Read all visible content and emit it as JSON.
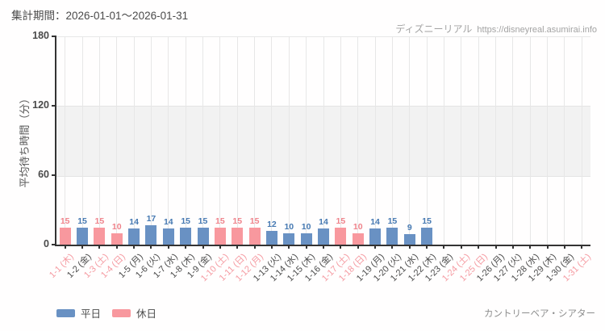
{
  "header": {
    "title": "集計期間：2026-01-01～2026-01-31",
    "watermark_brand": "ディズニーリアル",
    "watermark_url": "https://disneyreal.asumirai.info"
  },
  "chart_data": {
    "type": "bar",
    "title": "集計期間：2026-01-01～2026-01-31",
    "xlabel": "",
    "ylabel": "平均待ち時間（分）",
    "ylim": [
      0,
      180
    ],
    "yticks": [
      0,
      60,
      120,
      180
    ],
    "band": {
      "from": 60,
      "to": 120,
      "color": "#f2f2f2"
    },
    "grid": "vertical-per-category",
    "legend_position": "bottom-left",
    "categories": [
      "1-1 (木)",
      "1-2 (金)",
      "1-3 (土)",
      "1-4 (日)",
      "1-5 (月)",
      "1-6 (火)",
      "1-7 (水)",
      "1-8 (木)",
      "1-9 (金)",
      "1-10 (土)",
      "1-11 (日)",
      "1-12 (月)",
      "1-13 (火)",
      "1-14 (水)",
      "1-15 (木)",
      "1-16 (金)",
      "1-17 (土)",
      "1-18 (日)",
      "1-19 (月)",
      "1-20 (火)",
      "1-21 (水)",
      "1-22 (木)",
      "1-23 (金)",
      "1-24 (土)",
      "1-25 (日)",
      "1-26 (月)",
      "1-27 (火)",
      "1-28 (水)",
      "1-29 (木)",
      "1-30 (金)",
      "1-31 (土)"
    ],
    "values": [
      15,
      15,
      15,
      10,
      14,
      17,
      14,
      15,
      15,
      15,
      15,
      15,
      12,
      10,
      10,
      14,
      15,
      10,
      14,
      15,
      9,
      15,
      null,
      null,
      null,
      null,
      null,
      null,
      null,
      null,
      null
    ],
    "day_types": [
      "holiday",
      "weekday",
      "holiday",
      "holiday",
      "weekday",
      "weekday",
      "weekday",
      "weekday",
      "weekday",
      "holiday",
      "holiday",
      "holiday",
      "weekday",
      "weekday",
      "weekday",
      "weekday",
      "holiday",
      "holiday",
      "weekday",
      "weekday",
      "weekday",
      "weekday",
      "weekday",
      "holiday",
      "holiday",
      "weekday",
      "weekday",
      "weekday",
      "weekday",
      "weekday",
      "holiday"
    ],
    "series_colors": {
      "weekday": {
        "bar": "#6991c3",
        "value_label": "#4679b2"
      },
      "holiday": {
        "bar": "#f8989e",
        "value_label": "#ef838b"
      }
    },
    "xlabel_colors": {
      "weekday": "#4a4a4a",
      "holiday": "#f59aa1"
    }
  },
  "legend": {
    "items": [
      {
        "label": "平日",
        "color": "#6991c3"
      },
      {
        "label": "休日",
        "color": "#f8989e"
      }
    ]
  },
  "footer": {
    "attraction": "カントリーベア・シアター"
  }
}
